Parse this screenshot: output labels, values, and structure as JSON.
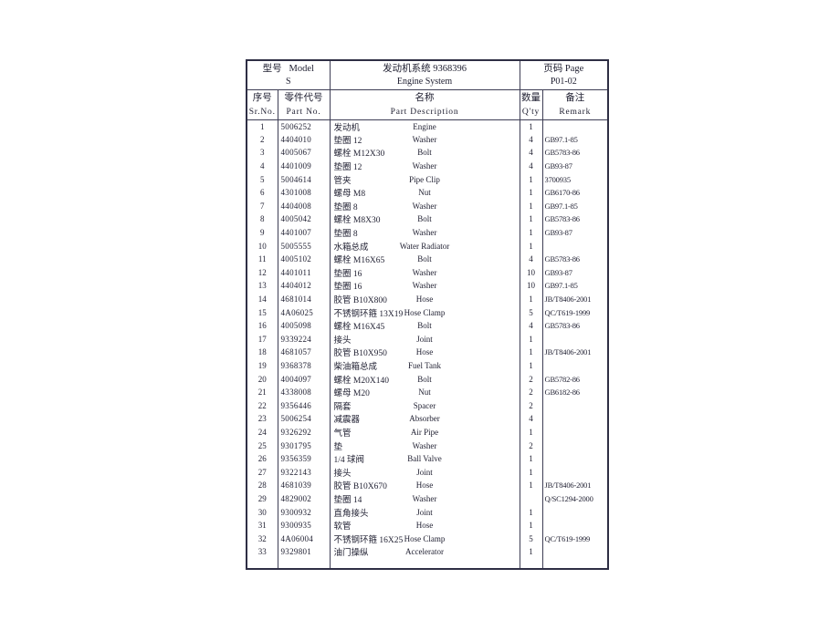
{
  "header": {
    "model_label": "型号   Model",
    "model_value": "S",
    "system_title": "发动机系统 9368396",
    "system_subtitle": "Engine System",
    "page_label": "页码 Page",
    "page_value": "P01-02"
  },
  "columns": [
    {
      "cn": "序号",
      "en": "Sr.No."
    },
    {
      "cn": "零件代号",
      "en": "Part No."
    },
    {
      "cn": "名称",
      "en": "Part Description"
    },
    {
      "cn": "数量",
      "en": "Q'ty"
    },
    {
      "cn": "备注",
      "en": "Remark"
    }
  ],
  "rows": [
    {
      "sr": "1",
      "part_no": "5006252",
      "name_cn": "发动机",
      "name_en": "Engine",
      "qty": "1",
      "remark": ""
    },
    {
      "sr": "2",
      "part_no": "4404010",
      "name_cn": "垫圈 12",
      "name_en": "Washer",
      "qty": "4",
      "remark": "GB97.1-85"
    },
    {
      "sr": "3",
      "part_no": "4005067",
      "name_cn": "螺栓 M12X30",
      "name_en": "Bolt",
      "qty": "4",
      "remark": "GB5783-86"
    },
    {
      "sr": "4",
      "part_no": "4401009",
      "name_cn": "垫圈 12",
      "name_en": "Washer",
      "qty": "4",
      "remark": "GB93-87"
    },
    {
      "sr": "5",
      "part_no": "5004614",
      "name_cn": "管夹",
      "name_en": "Pipe Clip",
      "qty": "1",
      "remark": "3700935"
    },
    {
      "sr": "6",
      "part_no": "4301008",
      "name_cn": "螺母 M8",
      "name_en": "Nut",
      "qty": "1",
      "remark": "GB6170-86"
    },
    {
      "sr": "7",
      "part_no": "4404008",
      "name_cn": "垫圈 8",
      "name_en": "Washer",
      "qty": "1",
      "remark": "GB97.1-85"
    },
    {
      "sr": "8",
      "part_no": "4005042",
      "name_cn": "螺栓 M8X30",
      "name_en": "Bolt",
      "qty": "1",
      "remark": "GB5783-86"
    },
    {
      "sr": "9",
      "part_no": "4401007",
      "name_cn": "垫圈 8",
      "name_en": "Washer",
      "qty": "1",
      "remark": "GB93-87"
    },
    {
      "sr": "10",
      "part_no": "5005555",
      "name_cn": "水箱总成",
      "name_en": "Water Radiator",
      "qty": "1",
      "remark": ""
    },
    {
      "sr": "11",
      "part_no": "4005102",
      "name_cn": "螺栓 M16X65",
      "name_en": "Bolt",
      "qty": "4",
      "remark": "GB5783-86"
    },
    {
      "sr": "12",
      "part_no": "4401011",
      "name_cn": "垫圈 16",
      "name_en": "Washer",
      "qty": "10",
      "remark": "GB93-87"
    },
    {
      "sr": "13",
      "part_no": "4404012",
      "name_cn": "垫圈 16",
      "name_en": "Washer",
      "qty": "10",
      "remark": "GB97.1-85"
    },
    {
      "sr": "14",
      "part_no": "4681014",
      "name_cn": "胶管 B10X800",
      "name_en": "Hose",
      "qty": "1",
      "remark": "JB/T8406-2001"
    },
    {
      "sr": "15",
      "part_no": "4A06025",
      "name_cn": "不锈钢环箍 13X19",
      "name_en": "Hose Clamp",
      "qty": "5",
      "remark": "QC/T619-1999"
    },
    {
      "sr": "16",
      "part_no": "4005098",
      "name_cn": "螺栓 M16X45",
      "name_en": "Bolt",
      "qty": "4",
      "remark": "GB5783-86"
    },
    {
      "sr": "17",
      "part_no": "9339224",
      "name_cn": "接头",
      "name_en": "Joint",
      "qty": "1",
      "remark": ""
    },
    {
      "sr": "18",
      "part_no": "4681057",
      "name_cn": "胶管 B10X950",
      "name_en": "Hose",
      "qty": "1",
      "remark": "JB/T8406-2001"
    },
    {
      "sr": "19",
      "part_no": "9368378",
      "name_cn": "柴油箱总成",
      "name_en": "Fuel Tank",
      "qty": "1",
      "remark": ""
    },
    {
      "sr": "20",
      "part_no": "4004097",
      "name_cn": "螺栓 M20X140",
      "name_en": "Bolt",
      "qty": "2",
      "remark": "GB5782-86"
    },
    {
      "sr": "21",
      "part_no": "4338008",
      "name_cn": "螺母 M20",
      "name_en": "Nut",
      "qty": "2",
      "remark": "GB6182-86"
    },
    {
      "sr": "22",
      "part_no": "9356446",
      "name_cn": "隔套",
      "name_en": "Spacer",
      "qty": "2",
      "remark": ""
    },
    {
      "sr": "23",
      "part_no": "5006254",
      "name_cn": "减震器",
      "name_en": "Absorber",
      "qty": "4",
      "remark": ""
    },
    {
      "sr": "24",
      "part_no": "9326292",
      "name_cn": "气管",
      "name_en": "Air Pipe",
      "qty": "1",
      "remark": ""
    },
    {
      "sr": "25",
      "part_no": "9301795",
      "name_cn": "垫",
      "name_en": "Washer",
      "qty": "2",
      "remark": ""
    },
    {
      "sr": "26",
      "part_no": "9356359",
      "name_cn": "1/4 球阀",
      "name_en": "Ball Valve",
      "qty": "1",
      "remark": ""
    },
    {
      "sr": "27",
      "part_no": "9322143",
      "name_cn": "接头",
      "name_en": "Joint",
      "qty": "1",
      "remark": ""
    },
    {
      "sr": "28",
      "part_no": "4681039",
      "name_cn": "胶管 B10X670",
      "name_en": "Hose",
      "qty": "1",
      "remark": "JB/T8406-2001"
    },
    {
      "sr": "29",
      "part_no": "4829002",
      "name_cn": "垫圈 14",
      "name_en": "Washer",
      "qty": "",
      "remark": "Q/SC1294-2000"
    },
    {
      "sr": "30",
      "part_no": "9300932",
      "name_cn": "直角接头",
      "name_en": "Joint",
      "qty": "1",
      "remark": ""
    },
    {
      "sr": "31",
      "part_no": "9300935",
      "name_cn": "软管",
      "name_en": "Hose",
      "qty": "1",
      "remark": ""
    },
    {
      "sr": "32",
      "part_no": "4A06004",
      "name_cn": "不锈钢环箍 16X25",
      "name_en": "Hose Clamp",
      "qty": "5",
      "remark": "QC/T619-1999"
    },
    {
      "sr": "33",
      "part_no": "9329801",
      "name_cn": "油门操纵",
      "name_en": "Accelerator",
      "qty": "1",
      "remark": ""
    }
  ]
}
